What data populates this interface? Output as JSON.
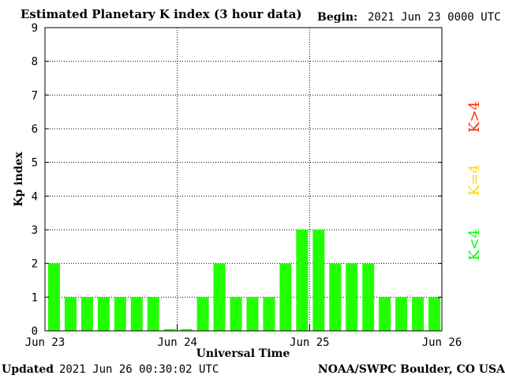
{
  "header": {
    "title": "Estimated Planetary K index (3 hour data)",
    "begin_label": "Begin:",
    "begin_value": "2021 Jun 23 0000 UTC"
  },
  "footer": {
    "updated_label": "Updated",
    "updated_value": "2021 Jun 26 00:30:02 UTC",
    "credit": "NOAA/SWPC Boulder, CO USA"
  },
  "legend": [
    {
      "label": "K<4",
      "color": "#00ff00"
    },
    {
      "label": "K=4",
      "color": "#ffd700"
    },
    {
      "label": "K>4",
      "color": "#ff2a00"
    }
  ],
  "colors": {
    "bar": "#22ff00",
    "grid": "#000000"
  },
  "chart_data": {
    "type": "bar",
    "title": "Estimated Planetary K index (3 hour data)",
    "xlabel": "Universal Time",
    "ylabel": "Kp index",
    "ylim": [
      0,
      9
    ],
    "yticks": [
      0,
      1,
      2,
      3,
      4,
      5,
      6,
      7,
      8,
      9
    ],
    "xticks": [
      "Jun 23",
      "Jun 24",
      "Jun 25",
      "Jun 26"
    ],
    "interval_hours": 3,
    "values": [
      2,
      1,
      1,
      1,
      1,
      1,
      1,
      0.05,
      0.05,
      1,
      2,
      1,
      1,
      1,
      2,
      3,
      3,
      2,
      2,
      2,
      1,
      1,
      1,
      1
    ],
    "grid": true
  }
}
